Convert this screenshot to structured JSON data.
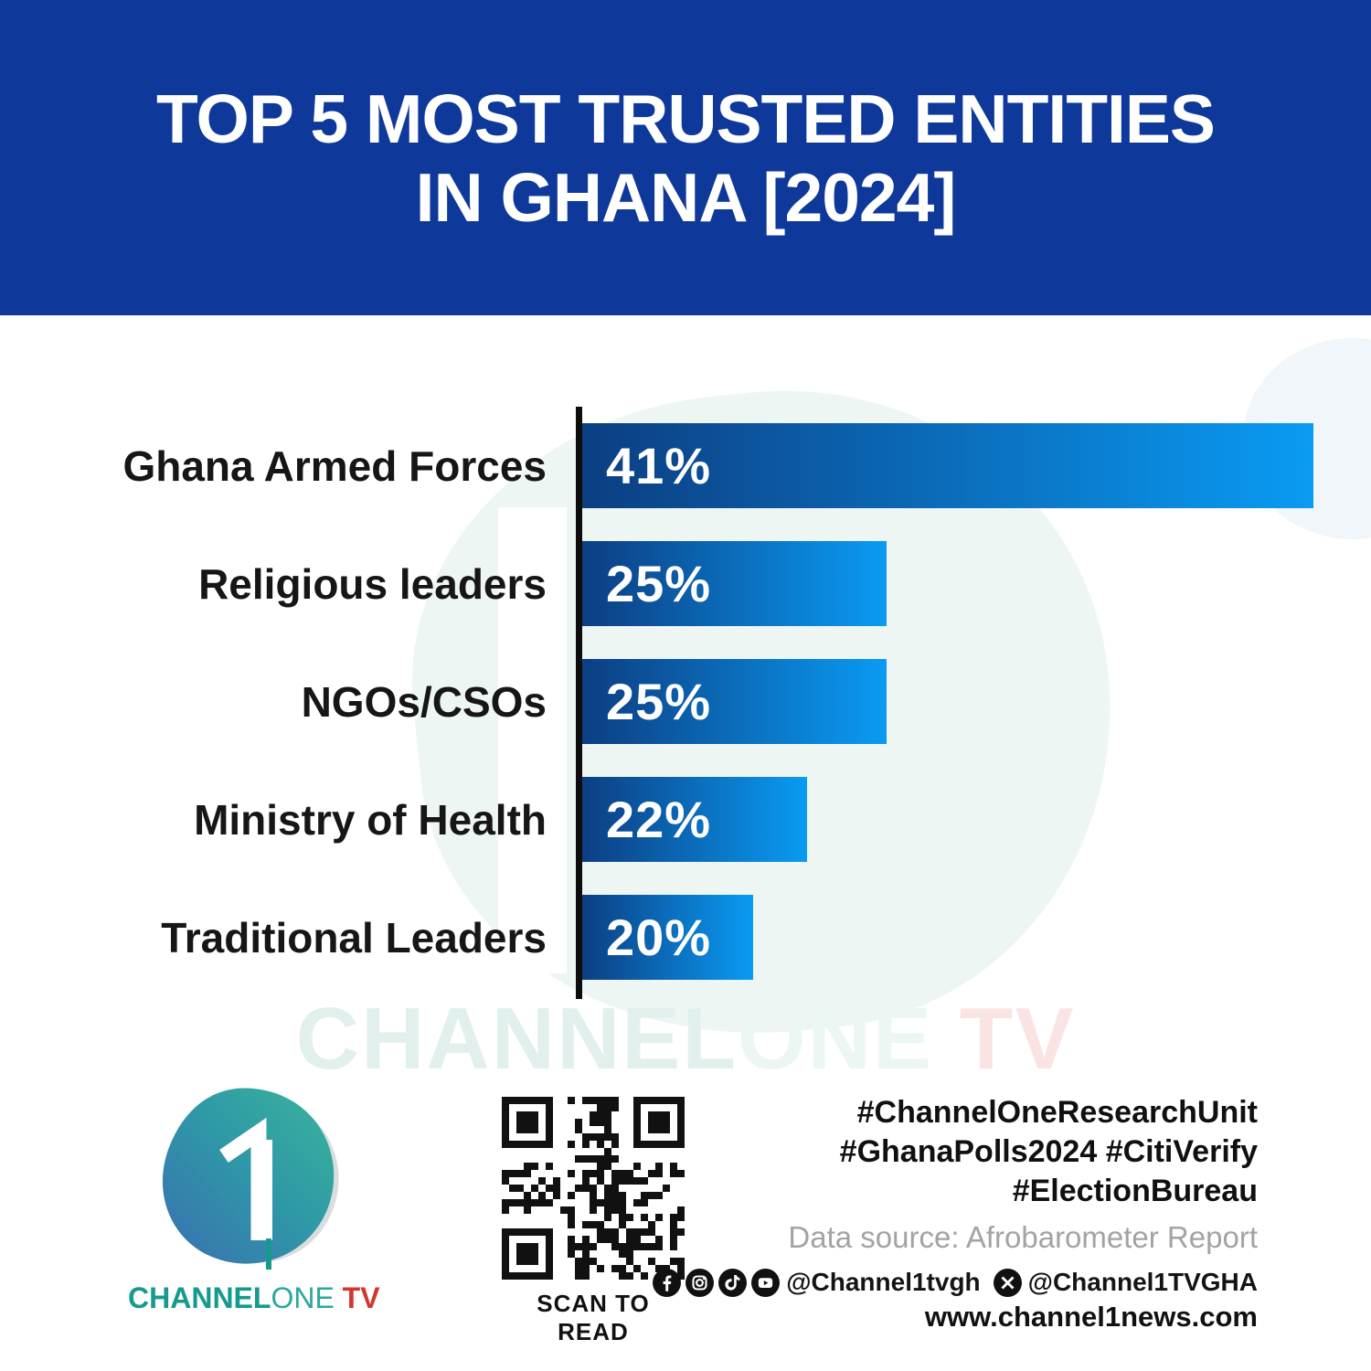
{
  "header": {
    "title_line1": "TOP 5 MOST TRUSTED ENTITIES",
    "title_line2": "IN GHANA [2024]"
  },
  "chart_data": {
    "type": "bar",
    "orientation": "horizontal",
    "title": "Top 5 most trusted entities in Ghana [2024]",
    "categories": [
      "Ghana Armed Forces",
      "Religious leaders",
      "NGOs/CSOs",
      "Ministry of Health",
      "Traditional Leaders"
    ],
    "values": [
      41,
      25,
      25,
      22,
      20
    ],
    "value_labels": [
      "41%",
      "25%",
      "25%",
      "22%",
      "20%"
    ],
    "unit": "percent",
    "bar_width_pct_of_track": [
      100,
      41.6,
      41.6,
      30.8,
      23.4
    ],
    "bar_color_start": "#0c3e82",
    "bar_color_end": "#0a9bf3",
    "axis_color": "#0d0d0d",
    "grid": false,
    "legend": false
  },
  "watermark": {
    "part1": "CHANNEL",
    "part2": "ONE",
    "part3": " TV"
  },
  "footer": {
    "logo": {
      "brand_bold": "CHANNEL",
      "brand_light": "ONE",
      "brand_tv": " TV"
    },
    "qr_caption": "SCAN TO READ",
    "hashtags": [
      "#ChannelOneResearchUnit",
      "#GhanaPolls2024 #CitiVerify",
      "#ElectionBureau"
    ],
    "data_source": "Data source: Afrobarometer Report",
    "social_icons": [
      "facebook-icon",
      "instagram-icon",
      "tiktok-icon",
      "youtube-icon"
    ],
    "social_handle_main": "@Channel1tvgh",
    "social_handle_x": "@Channel1TVGHA",
    "website": "www.channel1news.com"
  },
  "colors": {
    "header_bg": "#0e399a",
    "brand_teal": "#169a8e",
    "brand_red": "#d2372e",
    "shield_watermark": "#eef6f4"
  }
}
